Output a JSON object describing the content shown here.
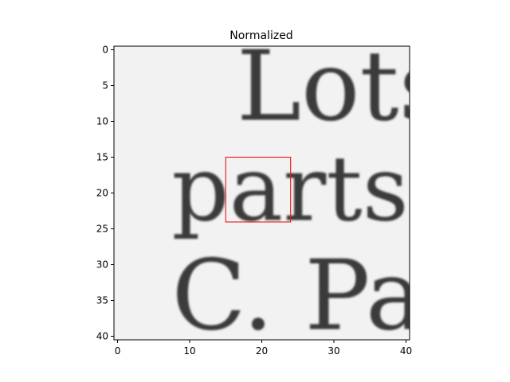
{
  "chart_data": {
    "type": "heatmap",
    "title": "Normalized",
    "xlabel": "",
    "ylabel": "",
    "xlim": [
      -0.5,
      40.5
    ],
    "ylim": [
      40.5,
      -0.5
    ],
    "x_ticks": [
      0,
      10,
      20,
      30,
      40
    ],
    "y_ticks": [
      0,
      5,
      10,
      15,
      20,
      25,
      30,
      35,
      40
    ],
    "x_tick_labels": [
      "0",
      "10",
      "20",
      "30",
      "40"
    ],
    "y_tick_labels": [
      "0",
      "5",
      "10",
      "15",
      "20",
      "25",
      "30",
      "35",
      "40"
    ],
    "colormap": "gray",
    "image_text_rows": [
      "Lots o",
      "parts of e",
      "C. Palme"
    ],
    "rectangle": {
      "x": 15,
      "y": 15,
      "width": 9,
      "height": 9,
      "color": "#e8141a"
    }
  }
}
